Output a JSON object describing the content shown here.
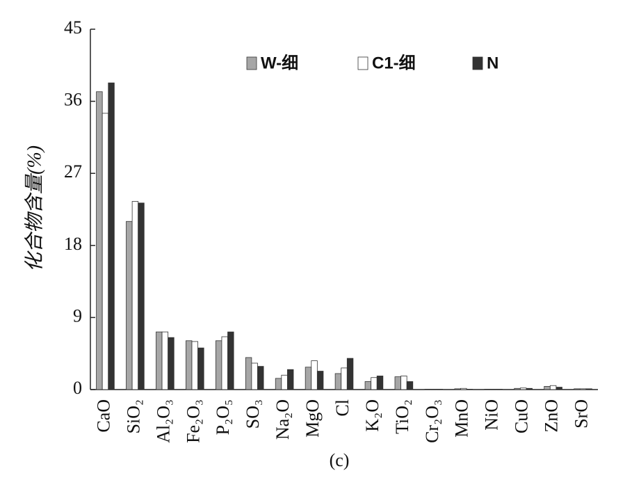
{
  "chart_data": {
    "type": "bar",
    "y_label": "化合物含量(%)",
    "caption": "(c)",
    "categories": [
      "CaO",
      "SiO₂",
      "Al₂O₃",
      "Fe₂O₃",
      "P₂O₅",
      "SO₃",
      "Na₂O",
      "MgO",
      "Cl",
      "K₂O",
      "TiO₂",
      "Cr₂O₃",
      "MnO",
      "NiO",
      "CuO",
      "ZnO",
      "SrO"
    ],
    "series": [
      {
        "name": "W-细",
        "color": "#a6a6a6",
        "values": [
          37.2,
          21.0,
          7.2,
          6.1,
          6.1,
          4.0,
          1.4,
          2.8,
          2.0,
          1.0,
          1.6,
          0.05,
          0.1,
          0.05,
          0.15,
          0.4,
          0.1
        ]
      },
      {
        "name": "C1-细",
        "color": "#ffffff",
        "values": [
          34.5,
          23.5,
          7.2,
          6.0,
          6.6,
          3.3,
          1.8,
          3.6,
          2.7,
          1.5,
          1.7,
          0.05,
          0.15,
          0.05,
          0.2,
          0.5,
          0.1
        ]
      },
      {
        "name": "N",
        "color": "#333333",
        "values": [
          38.3,
          23.3,
          6.5,
          5.2,
          7.2,
          2.9,
          2.5,
          2.3,
          3.9,
          1.7,
          1.0,
          0.05,
          0.05,
          0.05,
          0.15,
          0.3,
          0.1
        ]
      }
    ],
    "ylim": [
      0,
      45
    ],
    "yticks": [
      0,
      9,
      18,
      27,
      36,
      45
    ],
    "grid": false
  }
}
